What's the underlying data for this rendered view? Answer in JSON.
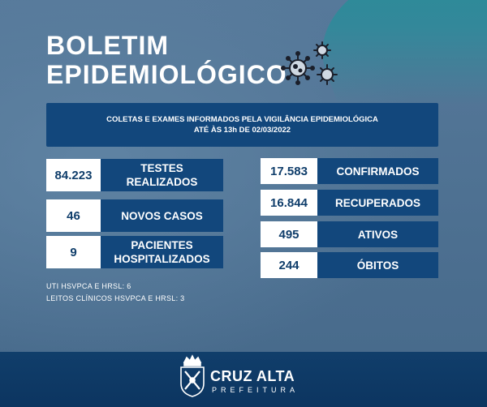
{
  "title": {
    "line1": "BOLETIM",
    "line2": "EPIDEMIOLÓGICO"
  },
  "banner": {
    "line1": "COLETAS E EXAMES INFORMADOS PELA VIGILÂNCIA EPIDEMIOLÓGICA",
    "line2": "ATÉ ÀS 13h DE 02/03/2022"
  },
  "left_stats": [
    {
      "value": "84.223",
      "label1": "TESTES",
      "label2": "REALIZADOS"
    },
    {
      "value": "46",
      "label1": "NOVOS CASOS",
      "label2": ""
    },
    {
      "value": "9",
      "label1": "PACIENTES",
      "label2": "HOSPITALIZADOS"
    }
  ],
  "right_stats": [
    {
      "value": "17.583",
      "label": "CONFIRMADOS"
    },
    {
      "value": "16.844",
      "label": "RECUPERADOS"
    },
    {
      "value": "495",
      "label": "ATIVOS"
    },
    {
      "value": "244",
      "label": "ÓBITOS"
    }
  ],
  "notes": {
    "line1": "UTI HSVPCA E HRSL: 6",
    "line2": "LEITOS CLÍNICOS HSVPCA E HRSL: 3"
  },
  "footer": {
    "name": "CRUZ ALTA",
    "sub": "PREFEITURA"
  },
  "icons": {
    "virus": "virus-icon",
    "logo": "city-crest-icon"
  },
  "colors": {
    "dark_blue": "#12477c",
    "background": "#4c6f90",
    "white": "#ffffff"
  }
}
